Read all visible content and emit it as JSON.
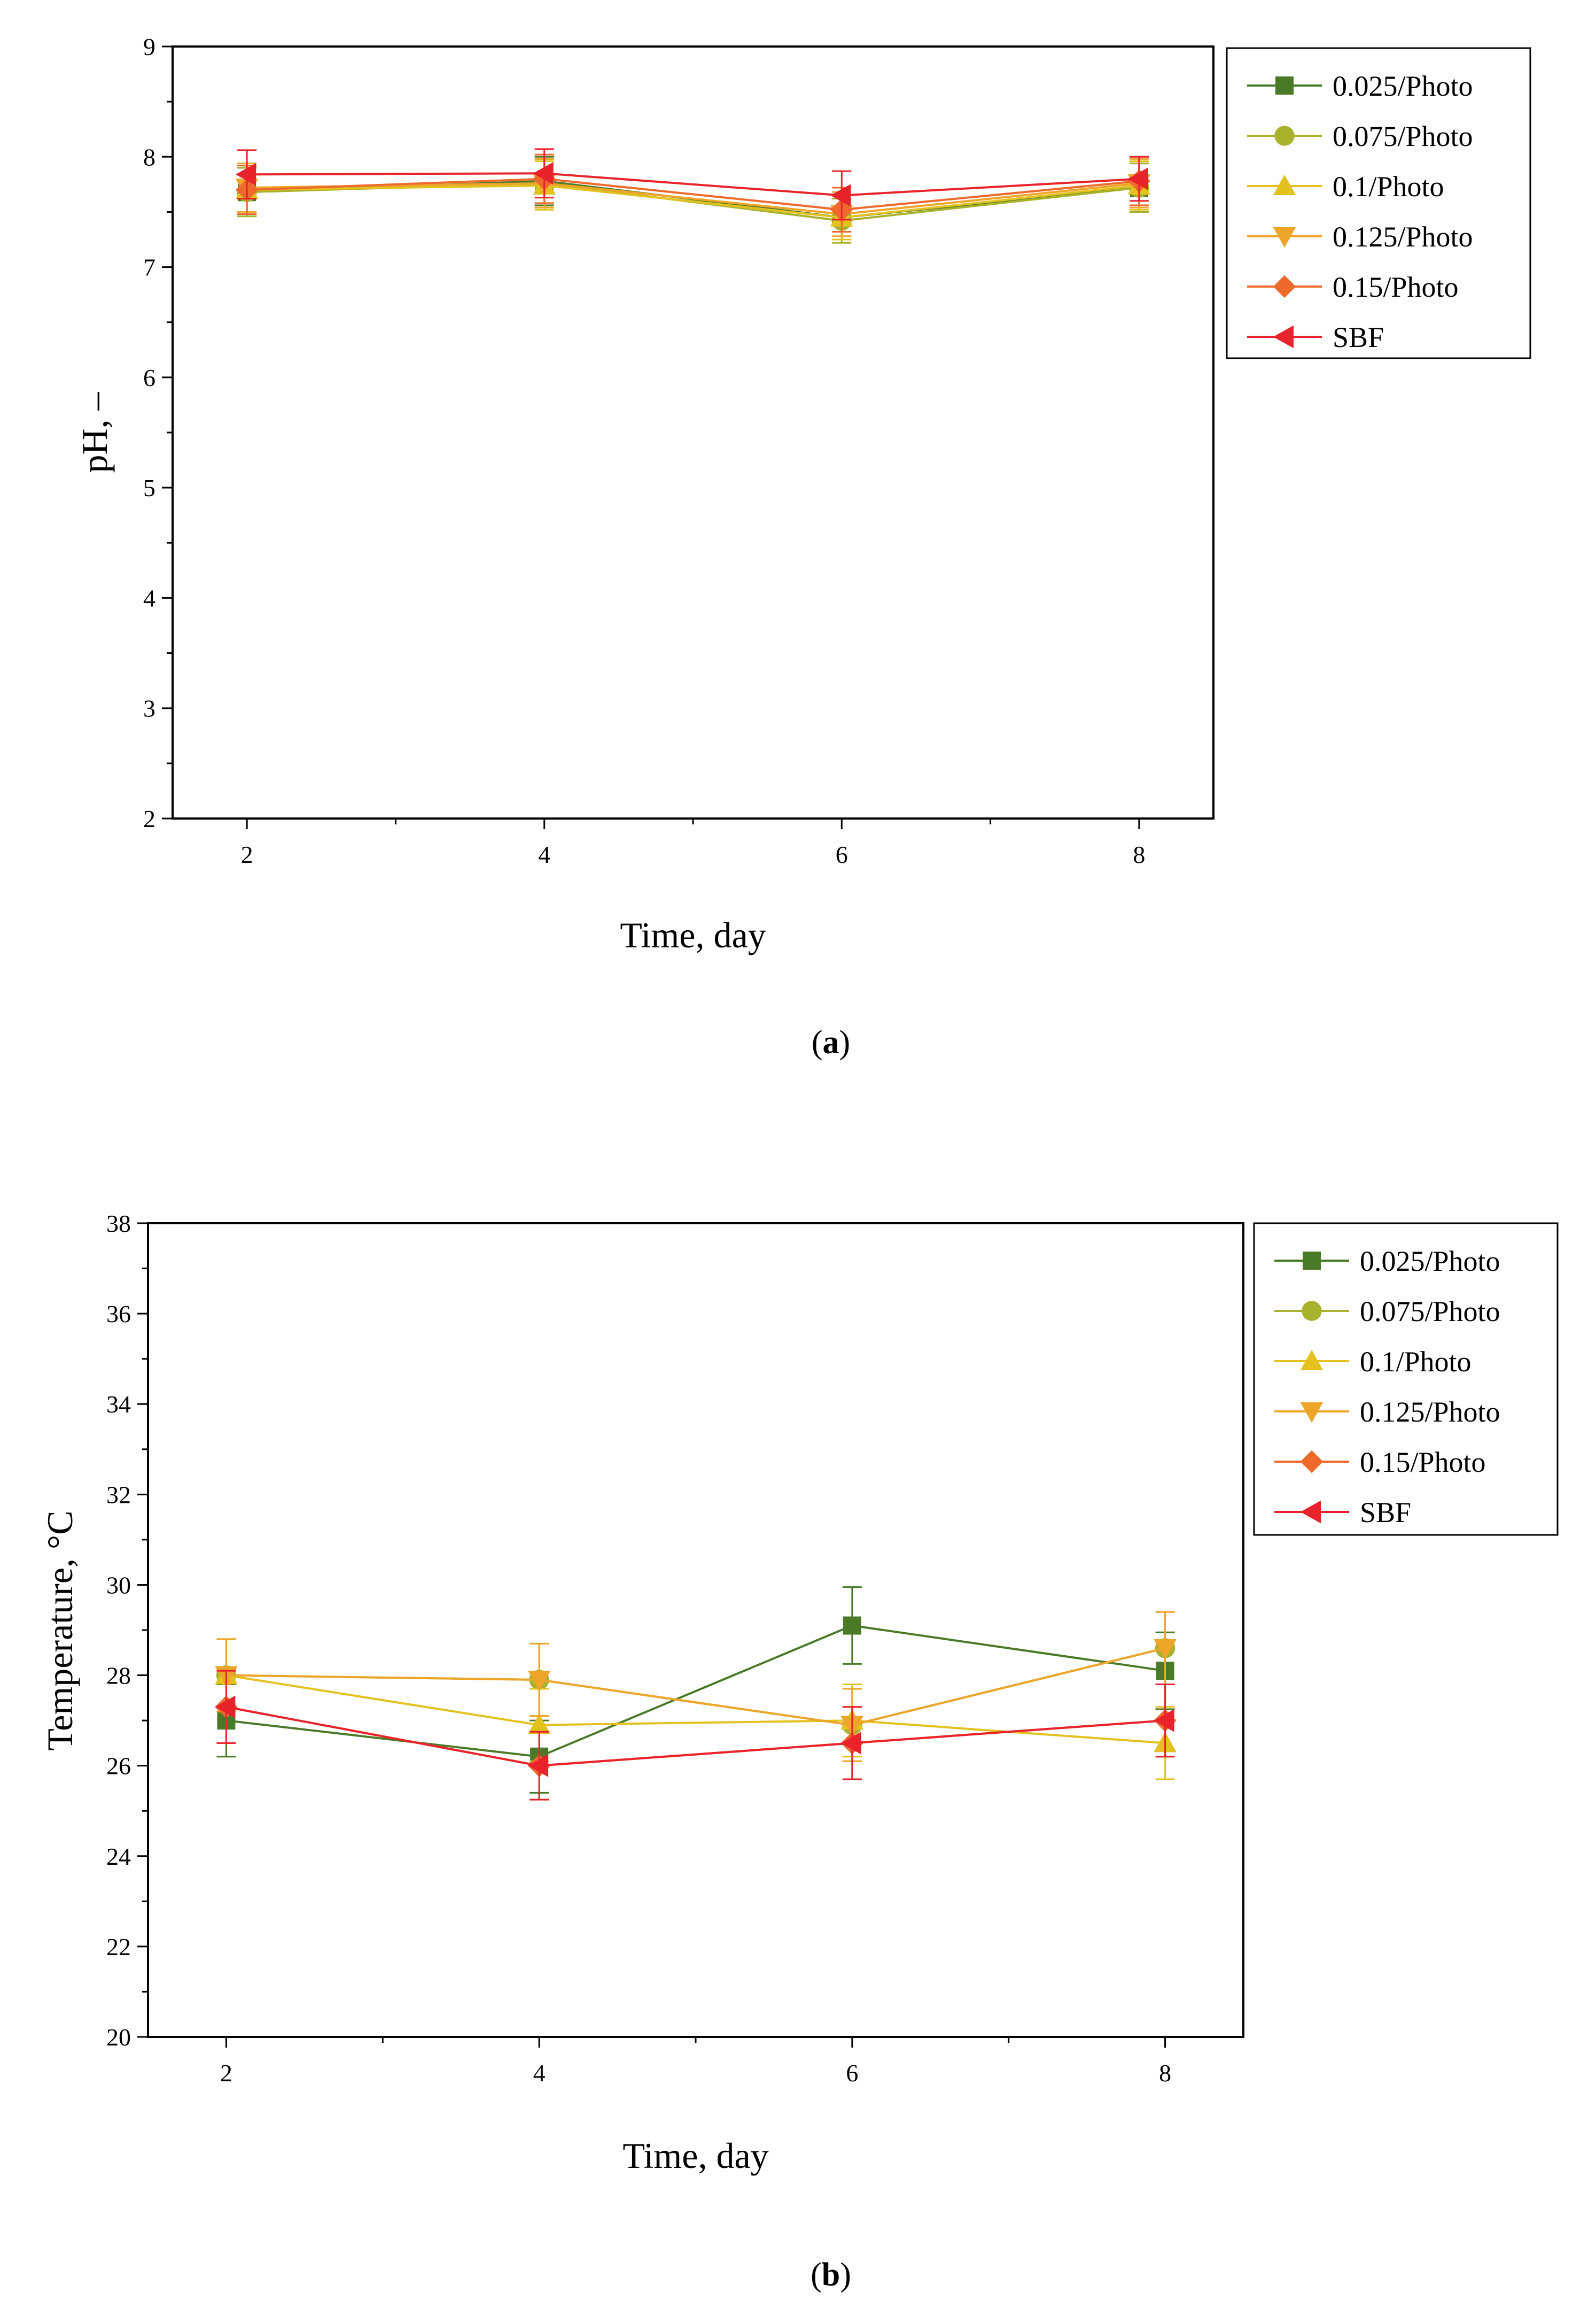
{
  "chart_data": [
    {
      "id": "a",
      "type": "line",
      "caption_label": "a",
      "xlabel": "Time, day",
      "ylabel": "pH, –",
      "xlim": [
        1.5,
        8.5
      ],
      "ylim": [
        2,
        9
      ],
      "xticks": [
        2,
        4,
        6,
        8
      ],
      "yticks": [
        2,
        3,
        4,
        5,
        6,
        7,
        8,
        9
      ],
      "x": [
        2,
        4,
        6,
        8
      ],
      "series": [
        {
          "name": "0.025/Photo",
          "color": "#4a7a28",
          "marker": "square",
          "values": [
            7.68,
            7.78,
            7.45,
            7.72
          ],
          "errors": [
            0.22,
            0.22,
            0.2,
            0.22
          ]
        },
        {
          "name": "0.075/Photo",
          "color": "#a9b22d",
          "marker": "circle",
          "values": [
            7.68,
            7.76,
            7.42,
            7.72
          ],
          "errors": [
            0.22,
            0.22,
            0.2,
            0.22
          ]
        },
        {
          "name": "0.1/Photo",
          "color": "#e3c11e",
          "marker": "triangle-up",
          "values": [
            7.7,
            7.74,
            7.45,
            7.74
          ],
          "errors": [
            0.22,
            0.22,
            0.2,
            0.22
          ]
        },
        {
          "name": "0.125/Photo",
          "color": "#eda52a",
          "marker": "triangle-down",
          "values": [
            7.72,
            7.76,
            7.48,
            7.76
          ],
          "errors": [
            0.22,
            0.22,
            0.2,
            0.22
          ]
        },
        {
          "name": "0.15/Photo",
          "color": "#ee6a2c",
          "marker": "diamond",
          "values": [
            7.7,
            7.8,
            7.52,
            7.78
          ],
          "errors": [
            0.22,
            0.22,
            0.2,
            0.22
          ]
        },
        {
          "name": "SBF",
          "color": "#e8232b",
          "marker": "triangle-left",
          "values": [
            7.84,
            7.85,
            7.65,
            7.8
          ],
          "errors": [
            0.22,
            0.22,
            0.22,
            0.2
          ]
        }
      ]
    },
    {
      "id": "b",
      "type": "line",
      "caption_label": "b",
      "xlabel": "Time, day",
      "ylabel": "Temperature, °C",
      "xlim": [
        1.5,
        8.5
      ],
      "ylim": [
        20,
        38
      ],
      "xticks": [
        2,
        4,
        6,
        8
      ],
      "yticks": [
        20,
        22,
        24,
        26,
        28,
        30,
        32,
        34,
        36,
        38
      ],
      "x": [
        2,
        4,
        6,
        8
      ],
      "series": [
        {
          "name": "0.025/Photo",
          "color": "#4a7a28",
          "marker": "square",
          "values": [
            27.0,
            26.2,
            29.1,
            28.1
          ],
          "errors": [
            0.8,
            0.8,
            0.85,
            0.85
          ]
        },
        {
          "name": "0.075/Photo",
          "color": "#a9b22d",
          "marker": "circle",
          "values": [
            28.0,
            27.9,
            26.9,
            28.6
          ],
          "errors": [
            0.8,
            0.8,
            0.8,
            0.8
          ]
        },
        {
          "name": "0.1/Photo",
          "color": "#e3c11e",
          "marker": "triangle-up",
          "values": [
            28.0,
            26.9,
            27.0,
            26.5
          ],
          "errors": [
            0.8,
            0.8,
            0.8,
            0.8
          ]
        },
        {
          "name": "0.125/Photo",
          "color": "#eda52a",
          "marker": "triangle-down",
          "values": [
            28.0,
            27.9,
            26.9,
            28.6
          ],
          "errors": [
            0.8,
            0.8,
            0.8,
            0.8
          ]
        },
        {
          "name": "0.15/Photo",
          "color": "#ee6a2c",
          "marker": "diamond",
          "values": [
            27.3,
            26.0,
            26.5,
            27.0
          ],
          "errors": [
            0.8,
            0.75,
            0.8,
            0.8
          ]
        },
        {
          "name": "SBF",
          "color": "#e8232b",
          "marker": "triangle-left",
          "values": [
            27.3,
            26.0,
            26.5,
            27.0
          ],
          "errors": [
            0.8,
            0.75,
            0.8,
            0.8
          ]
        }
      ]
    }
  ]
}
